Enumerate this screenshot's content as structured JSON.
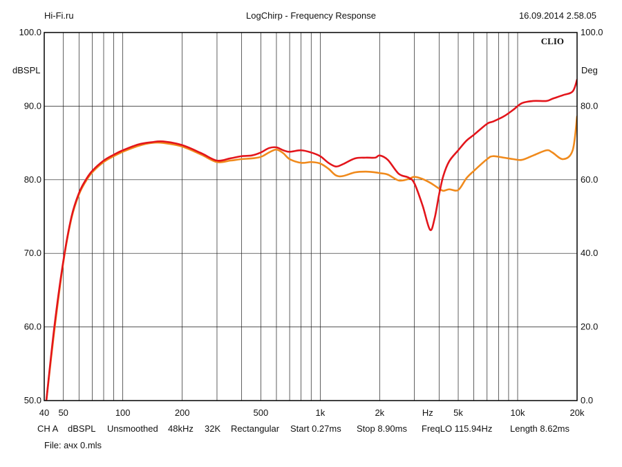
{
  "header": {
    "left": "Hi-Fi.ru",
    "center": "LogChirp - Frequency Response",
    "right": "16.09.2014 2.58.05"
  },
  "footer": {
    "items": [
      "CH A",
      "dBSPL",
      "Unsmoothed",
      "48kHz",
      "32K",
      "Rectangular",
      "Start 0.27ms",
      "Stop 8.90ms",
      "FreqLO 115.94Hz",
      "Length 8.62ms"
    ],
    "file": "File: ачх 0.mls"
  },
  "chart_data": {
    "type": "line",
    "brand": "CLIO",
    "x_scale": "log",
    "xlim": [
      40,
      20000
    ],
    "ylim_left": [
      50,
      100
    ],
    "ylim_right": [
      0,
      100
    ],
    "ylabel_left": "dBSPL",
    "ylabel_right": "Deg",
    "grid": true,
    "x_ticks": [
      {
        "value": 40,
        "label": "40"
      },
      {
        "value": 50,
        "label": "50"
      },
      {
        "value": 100,
        "label": "100"
      },
      {
        "value": 200,
        "label": "200"
      },
      {
        "value": 500,
        "label": "500"
      },
      {
        "value": 1000,
        "label": "1k"
      },
      {
        "value": 2000,
        "label": "2k"
      },
      {
        "value": 3500,
        "label": "Hz"
      },
      {
        "value": 5000,
        "label": "5k"
      },
      {
        "value": 10000,
        "label": "10k"
      },
      {
        "value": 20000,
        "label": "20k"
      }
    ],
    "y_ticks_left": [
      "50.0",
      "60.0",
      "70.0",
      "80.0",
      "90.0",
      "100.0"
    ],
    "y_ticks_right": [
      "0.0",
      "20.0",
      "40.0",
      "60.0",
      "80.0",
      "100.0"
    ],
    "series": [
      {
        "color": "#e3151b",
        "x": [
          41,
          45,
          50,
          55,
          60,
          65,
          70,
          80,
          90,
          100,
          120,
          140,
          160,
          200,
          250,
          300,
          350,
          400,
          450,
          500,
          550,
          600,
          650,
          700,
          800,
          900,
          1000,
          1100,
          1200,
          1300,
          1500,
          1700,
          1900,
          2000,
          2200,
          2500,
          2800,
          3000,
          3300,
          3600,
          3800,
          4000,
          4200,
          4500,
          5000,
          5500,
          6000,
          7000,
          7500,
          8500,
          9500,
          10500,
          12000,
          14000,
          15000,
          17000,
          19000,
          20000
        ],
        "y": [
          50.0,
          60.0,
          69.0,
          75.0,
          78.2,
          80.0,
          81.2,
          82.6,
          83.4,
          84.0,
          84.8,
          85.1,
          85.2,
          84.7,
          83.6,
          82.6,
          82.9,
          83.2,
          83.3,
          83.7,
          84.3,
          84.4,
          84.0,
          83.8,
          84.0,
          83.7,
          83.2,
          82.3,
          81.8,
          82.1,
          82.9,
          83.0,
          83.0,
          83.3,
          82.7,
          80.8,
          80.3,
          79.5,
          76.5,
          73.2,
          74.8,
          78.0,
          80.5,
          82.5,
          84.0,
          85.3,
          86.1,
          87.6,
          87.9,
          88.6,
          89.5,
          90.4,
          90.7,
          90.7,
          91.0,
          91.5,
          92.0,
          93.6
        ]
      },
      {
        "color": "#f08a1c",
        "x": [
          41,
          45,
          50,
          55,
          60,
          65,
          70,
          80,
          90,
          100,
          120,
          140,
          160,
          200,
          250,
          300,
          350,
          400,
          450,
          500,
          550,
          600,
          650,
          700,
          800,
          900,
          1000,
          1100,
          1200,
          1300,
          1500,
          1700,
          1900,
          2000,
          2200,
          2500,
          2800,
          3000,
          3300,
          3600,
          3800,
          4000,
          4200,
          4500,
          5000,
          5500,
          6000,
          7000,
          7500,
          8500,
          9500,
          10500,
          12000,
          14000,
          15000,
          17000,
          19000,
          20000
        ],
        "y": [
          50.0,
          59.5,
          68.8,
          74.8,
          78.0,
          79.8,
          81.0,
          82.4,
          83.2,
          83.8,
          84.6,
          85.0,
          85.0,
          84.5,
          83.4,
          82.4,
          82.6,
          82.8,
          82.9,
          83.1,
          83.7,
          84.1,
          83.6,
          82.8,
          82.3,
          82.4,
          82.2,
          81.5,
          80.6,
          80.5,
          81.0,
          81.1,
          81.0,
          80.9,
          80.7,
          79.9,
          80.1,
          80.4,
          80.1,
          79.6,
          79.2,
          78.8,
          78.5,
          78.7,
          78.6,
          80.2,
          81.2,
          82.8,
          83.2,
          83.0,
          82.8,
          82.7,
          83.3,
          84.0,
          83.7,
          82.8,
          84.0,
          88.6
        ]
      }
    ]
  }
}
